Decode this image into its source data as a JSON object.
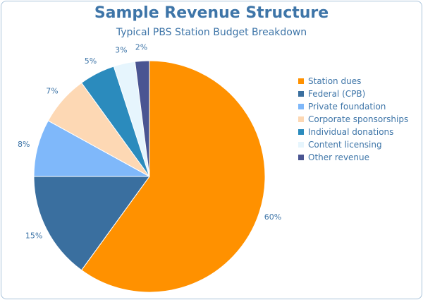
{
  "chart_data": {
    "type": "pie",
    "title": "Sample Revenue Structure",
    "subtitle": "Typical PBS Station Budget Breakdown",
    "legend_position": "right",
    "slices": [
      {
        "label": "Station dues",
        "value": 60,
        "value_label": "60%",
        "color": "#ff9100"
      },
      {
        "label": "Federal (CPB)",
        "value": 15,
        "value_label": "15%",
        "color": "#3a6f9f"
      },
      {
        "label": "Private foundation",
        "value": 8,
        "value_label": "8%",
        "color": "#7fb8fa"
      },
      {
        "label": "Corporate sponsorships",
        "value": 7,
        "value_label": "7%",
        "color": "#fdd8b4"
      },
      {
        "label": "Individual donations",
        "value": 5,
        "value_label": "5%",
        "color": "#2b8bbd"
      },
      {
        "label": "Content licensing",
        "value": 3,
        "value_label": "3%",
        "color": "#e6f5fd"
      },
      {
        "label": "Other revenue",
        "value": 2,
        "value_label": "2%",
        "color": "#4a5592"
      }
    ]
  }
}
